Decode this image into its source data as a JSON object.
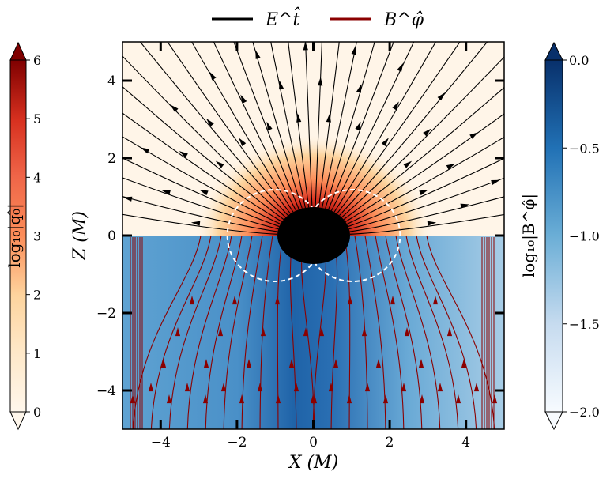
{
  "chart_data": {
    "type": "heatmap",
    "xlabel": "X (M)",
    "ylabel": "Z (M)",
    "xlim": [
      -5,
      5
    ],
    "ylim": [
      -5,
      5
    ],
    "xticks": [
      -4,
      -2,
      0,
      2,
      4
    ],
    "yticks": [
      -4,
      -2,
      0,
      2,
      4
    ],
    "legend": {
      "placement": "top-center",
      "entries": [
        {
          "label": "E^t̂",
          "color": "#000000"
        },
        {
          "label": "B^φ̂",
          "color": "#8b0000"
        }
      ]
    },
    "upper_half": {
      "field": "E^t̂ streamlines",
      "colormap": "OrRd",
      "colorbar_label": "log₁₀|q₀̂|",
      "range": [
        0,
        6
      ],
      "ticks": [
        0,
        1,
        2,
        3,
        4,
        5,
        6
      ]
    },
    "lower_half": {
      "field": "B^φ̂ streamlines",
      "colormap": "Blues",
      "colorbar_label": "log₁₀|B^φ̂|",
      "range": [
        -2.0,
        0.0
      ],
      "ticks": [
        "−2.0",
        "−1.5",
        "−1.0",
        "−0.5",
        "0.0"
      ]
    },
    "colors": {
      "horizon": "#000000",
      "ergosphere": "#ffffff",
      "e_lines": "#000000",
      "b_lines": "#8b0000"
    }
  }
}
